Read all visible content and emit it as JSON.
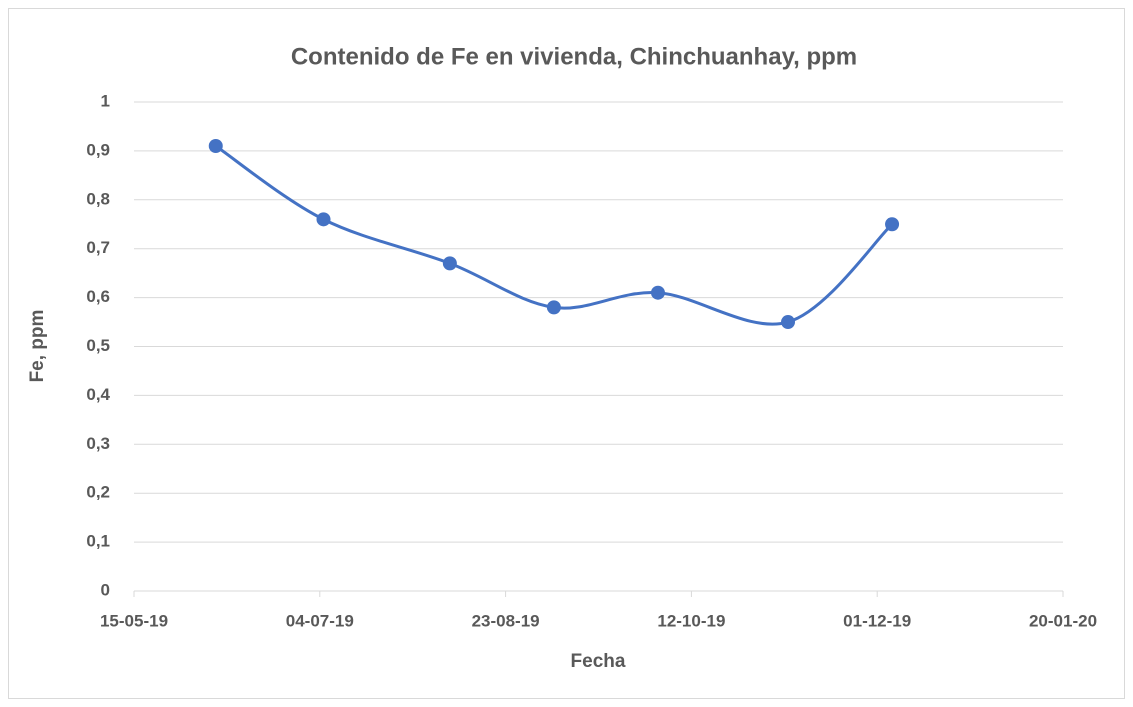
{
  "chart_data": {
    "type": "line",
    "title": "Contenido de Fe en vivienda, Chinchuanhay, ppm",
    "x_label": "Fecha",
    "y_label": "Fe, ppm",
    "x": [
      "2019-06-06",
      "2019-07-05",
      "2019-08-08",
      "2019-09-05",
      "2019-10-03",
      "2019-11-07",
      "2019-12-05"
    ],
    "series": [
      {
        "name": "Fe",
        "color": "#4472c4",
        "values": [
          0.91,
          0.76,
          0.67,
          0.58,
          0.61,
          0.55,
          0.75
        ]
      }
    ],
    "xlim": [
      "2019-05-15",
      "2020-01-20"
    ],
    "xticks": [
      {
        "value": "2019-05-15",
        "label": "15-05-19"
      },
      {
        "value": "2019-07-04",
        "label": "04-07-19"
      },
      {
        "value": "2019-08-23",
        "label": "23-08-19"
      },
      {
        "value": "2019-10-12",
        "label": "12-10-19"
      },
      {
        "value": "2019-12-01",
        "label": "01-12-19"
      },
      {
        "value": "2020-01-20",
        "label": "20-01-20"
      }
    ],
    "ylim": [
      0,
      1
    ],
    "yticks": [
      0,
      {
        "value": 0.1,
        "label": "0,1"
      },
      {
        "value": 0.2,
        "label": "0,2"
      },
      {
        "value": 0.3,
        "label": "0,3"
      },
      {
        "value": 0.4,
        "label": "0,4"
      },
      {
        "value": 0.5,
        "label": "0,5"
      },
      {
        "value": 0.6,
        "label": "0,6"
      },
      {
        "value": 0.7,
        "label": "0,7"
      },
      {
        "value": 0.8,
        "label": "0,8"
      },
      {
        "value": 0.9,
        "label": "0,9"
      },
      1
    ],
    "grid": true,
    "smooth": true
  }
}
